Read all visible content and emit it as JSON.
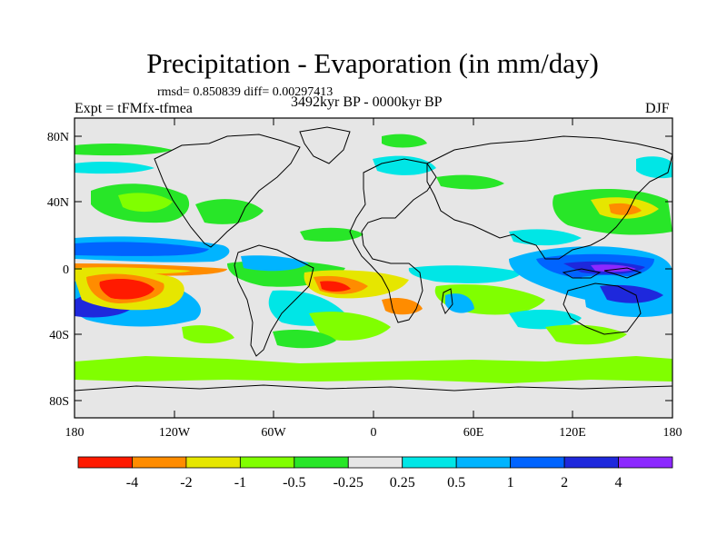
{
  "header": {
    "title": "Precipitation - Evaporation (in mm/day)",
    "stats": "rmsd= 0.850839 diff= 0.00297413",
    "experiment": "Expt = tFMfx-tfmea",
    "period": "3492kyr BP - 0000kyr BP",
    "season": "DJF"
  },
  "map": {
    "lat_labels": [
      "80N",
      "40N",
      "0",
      "40S",
      "80S"
    ],
    "lon_labels": [
      "180",
      "120W",
      "60W",
      "0",
      "60E",
      "120E",
      "180"
    ]
  },
  "legend": {
    "colors": [
      "#ff1a00",
      "#ff8c00",
      "#e6e600",
      "#80ff00",
      "#28e628",
      "#e6e6e6",
      "#00e6e6",
      "#00b4ff",
      "#0064ff",
      "#1e28dc",
      "#8c28ff"
    ],
    "labels": [
      "-4",
      "-2",
      "-1",
      "-0.5",
      "-0.25",
      "0.25",
      "0.5",
      "1",
      "2",
      "4"
    ]
  }
}
